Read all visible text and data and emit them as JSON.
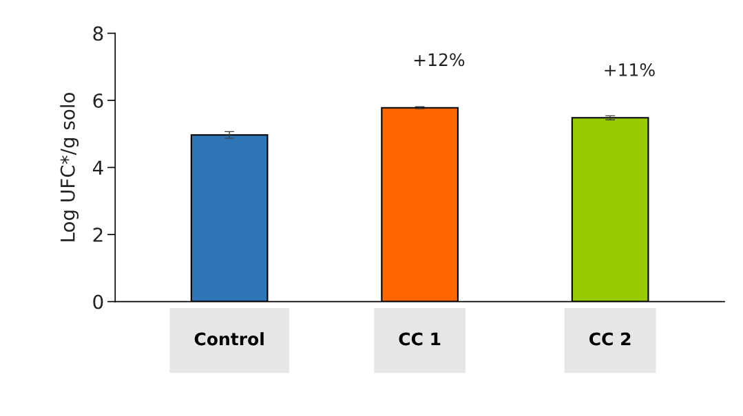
{
  "chart_data": {
    "type": "bar",
    "ylabel": "Log UFC*/g solo",
    "categories": [
      "Control",
      "CC 1",
      "CC 2"
    ],
    "values": [
      4.97,
      5.78,
      5.48
    ],
    "errors": [
      0.1,
      0.03,
      0.06
    ],
    "colors": [
      "#2e75b6",
      "#ff6600",
      "#99cc00"
    ],
    "ylim": [
      0,
      8
    ],
    "yticks": [
      0,
      2,
      4,
      6,
      8
    ],
    "annotations": [
      "+12%",
      "+11%"
    ],
    "grid": false,
    "legend": false
  }
}
